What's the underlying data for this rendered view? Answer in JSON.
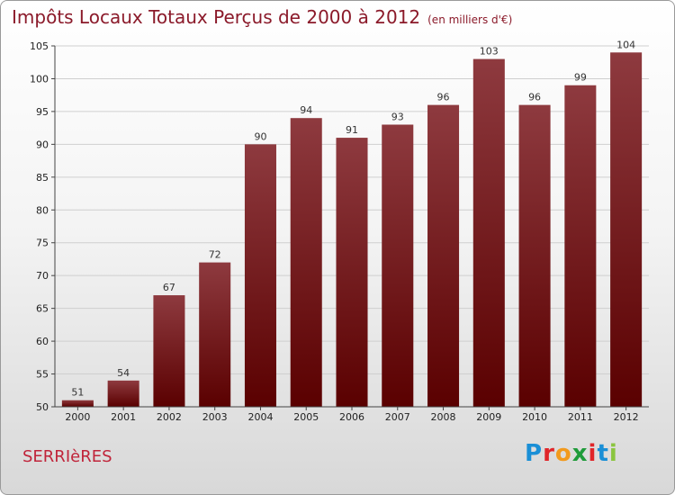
{
  "header": {
    "title": "Impôts Locaux Totaux Perçus de 2000 à 2012",
    "unit": "(en milliers d'€)"
  },
  "footer": {
    "commune": "SERRIèRES",
    "logo": {
      "letters": [
        "P",
        "r",
        "o",
        "x",
        "i",
        "t",
        "i"
      ],
      "colors": [
        "#1a8fd6",
        "#e0262a",
        "#f29a1d",
        "#1f9b3a",
        "#e0262a",
        "#1a8fd6",
        "#8bc53f"
      ]
    }
  },
  "colors": {
    "bar_top": "#8e3a3f",
    "bar_bottom": "#5a0000",
    "grid": "#cfcfcf",
    "title": "#8b1a2a"
  },
  "chart_data": {
    "type": "bar",
    "title": "Impôts Locaux Totaux Perçus de 2000 à 2012",
    "xlabel": "",
    "ylabel": "",
    "categories": [
      "2000",
      "2001",
      "2002",
      "2003",
      "2004",
      "2005",
      "2006",
      "2007",
      "2008",
      "2009",
      "2010",
      "2011",
      "2012"
    ],
    "values": [
      51,
      54,
      67,
      72,
      90,
      94,
      91,
      93,
      96,
      103,
      96,
      99,
      104
    ],
    "ylim": [
      50,
      105
    ],
    "yticks": [
      50,
      55,
      60,
      65,
      70,
      75,
      80,
      85,
      90,
      95,
      100,
      105
    ],
    "grid": true,
    "legend": "none"
  }
}
